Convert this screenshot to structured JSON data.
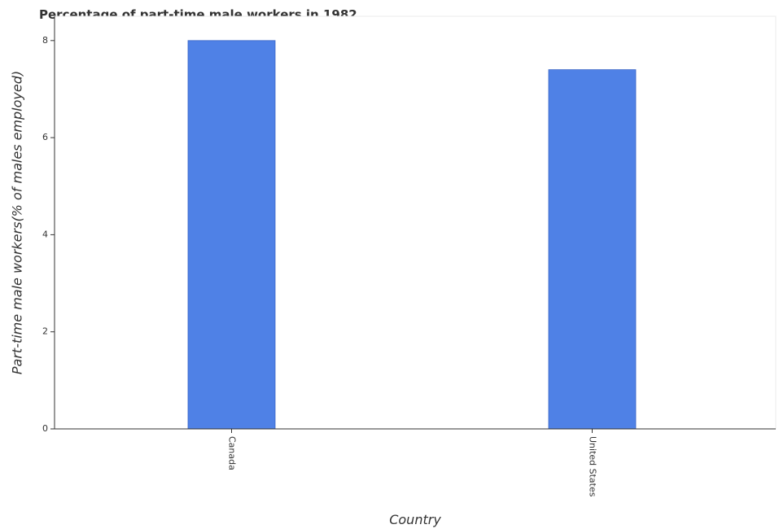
{
  "chart_data": {
    "type": "bar",
    "title": "Percentage of part-time male workers in 1982",
    "xlabel": "Country",
    "ylabel": "Part-time male workers(% of males employed)",
    "categories": [
      "Canada",
      "United States"
    ],
    "values": [
      8,
      7.4
    ],
    "ylim": [
      0,
      8.5
    ],
    "yticks": [
      0,
      2,
      4,
      6,
      8
    ],
    "grid": false,
    "legend": "none",
    "bar_color": "#4f81e6",
    "bar_edge_color": "#3a65c7"
  }
}
